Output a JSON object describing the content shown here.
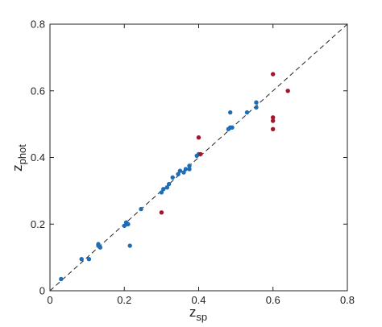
{
  "chart_data": {
    "type": "scatter",
    "title": "",
    "xlabel": {
      "main": "z",
      "sub": "sp"
    },
    "ylabel": {
      "main": "z",
      "sub": "phot"
    },
    "xlim": [
      0,
      0.8
    ],
    "ylim": [
      0,
      0.8
    ],
    "xticks": [
      "0",
      "0.2",
      "0.4",
      "0.6",
      "0.8"
    ],
    "yticks": [
      "0",
      "0.2",
      "0.4",
      "0.6",
      "0.8"
    ],
    "grid": false,
    "reference_line": {
      "style": "dashed",
      "from": [
        0,
        0
      ],
      "to": [
        0.8,
        0.8
      ]
    },
    "series": [
      {
        "color": "#1f6db5",
        "points": [
          [
            0.03,
            0.035
          ],
          [
            0.085,
            0.095
          ],
          [
            0.105,
            0.095
          ],
          [
            0.13,
            0.135
          ],
          [
            0.13,
            0.14
          ],
          [
            0.135,
            0.13
          ],
          [
            0.2,
            0.195
          ],
          [
            0.205,
            0.2
          ],
          [
            0.205,
            0.205
          ],
          [
            0.21,
            0.2
          ],
          [
            0.215,
            0.135
          ],
          [
            0.245,
            0.245
          ],
          [
            0.3,
            0.295
          ],
          [
            0.305,
            0.305
          ],
          [
            0.315,
            0.31
          ],
          [
            0.32,
            0.32
          ],
          [
            0.33,
            0.34
          ],
          [
            0.345,
            0.35
          ],
          [
            0.35,
            0.36
          ],
          [
            0.36,
            0.355
          ],
          [
            0.365,
            0.365
          ],
          [
            0.375,
            0.375
          ],
          [
            0.375,
            0.365
          ],
          [
            0.395,
            0.405
          ],
          [
            0.4,
            0.41
          ],
          [
            0.48,
            0.485
          ],
          [
            0.485,
            0.49
          ],
          [
            0.49,
            0.49
          ],
          [
            0.485,
            0.535
          ],
          [
            0.53,
            0.535
          ],
          [
            0.555,
            0.565
          ],
          [
            0.555,
            0.55
          ]
        ]
      },
      {
        "color": "#a0162b",
        "points": [
          [
            0.3,
            0.235
          ],
          [
            0.4,
            0.46
          ],
          [
            0.405,
            0.41
          ],
          [
            0.6,
            0.65
          ],
          [
            0.6,
            0.52
          ],
          [
            0.6,
            0.51
          ],
          [
            0.6,
            0.485
          ],
          [
            0.64,
            0.6
          ]
        ]
      }
    ]
  }
}
